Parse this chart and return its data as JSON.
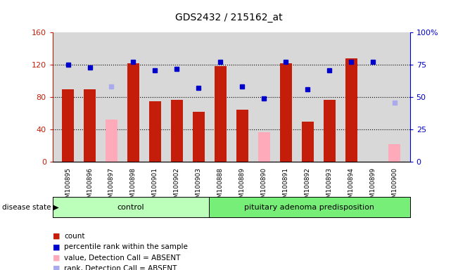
{
  "title": "GDS2432 / 215162_at",
  "samples": [
    "GSM100895",
    "GSM100896",
    "GSM100897",
    "GSM100898",
    "GSM100901",
    "GSM100902",
    "GSM100903",
    "GSM100888",
    "GSM100889",
    "GSM100890",
    "GSM100891",
    "GSM100892",
    "GSM100893",
    "GSM100894",
    "GSM100899",
    "GSM100900"
  ],
  "bar_values": [
    90,
    90,
    null,
    122,
    75,
    77,
    62,
    118,
    65,
    null,
    122,
    50,
    77,
    128,
    null,
    null
  ],
  "bar_absent": [
    null,
    null,
    52,
    null,
    null,
    null,
    null,
    null,
    null,
    37,
    null,
    null,
    null,
    null,
    null,
    22
  ],
  "dot_values_pct": [
    75,
    73,
    null,
    77,
    71,
    72,
    57,
    77,
    58,
    49,
    77,
    56,
    71,
    77,
    77,
    null
  ],
  "dot_absent_pct": [
    null,
    null,
    58,
    null,
    null,
    null,
    null,
    null,
    null,
    null,
    null,
    null,
    null,
    null,
    null,
    46
  ],
  "n_control": 7,
  "control_label": "control",
  "case_label": "pituitary adenoma predisposition",
  "ylim_left": [
    0,
    160
  ],
  "ylim_right": [
    0,
    100
  ],
  "yticks_left": [
    0,
    40,
    80,
    120,
    160
  ],
  "yticks_right": [
    0,
    25,
    50,
    75,
    100
  ],
  "ytick_labels_right": [
    "0",
    "25",
    "50",
    "75",
    "100%"
  ],
  "bar_color": "#C41E0A",
  "bar_absent_color": "#FFAABB",
  "dot_color": "#0000CC",
  "dot_absent_color": "#AAAAEE",
  "bg_color": "#D8D8D8",
  "control_bg": "#BBFFBB",
  "case_bg": "#77EE77",
  "legend_items": [
    {
      "label": "count",
      "color": "#C41E0A"
    },
    {
      "label": "percentile rank within the sample",
      "color": "#0000CC"
    },
    {
      "label": "value, Detection Call = ABSENT",
      "color": "#FFAABB"
    },
    {
      "label": "rank, Detection Call = ABSENT",
      "color": "#AAAAEE"
    }
  ]
}
